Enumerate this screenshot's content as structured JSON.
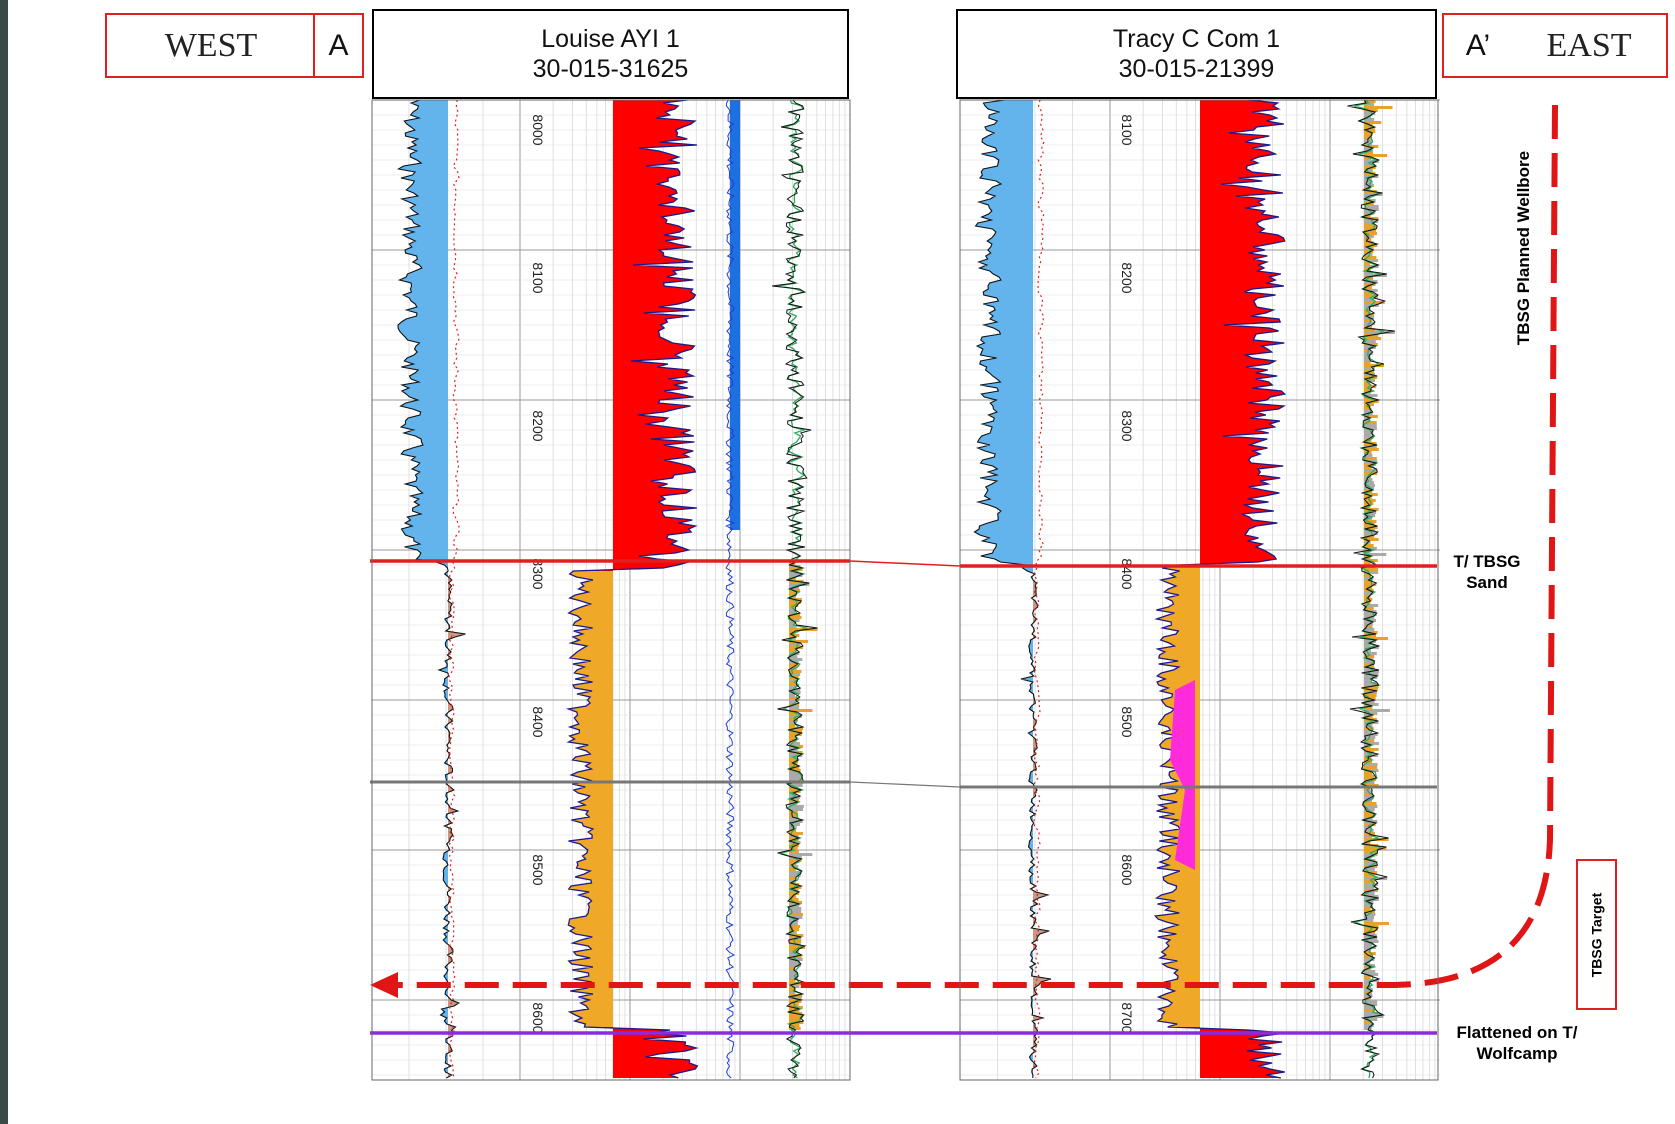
{
  "west_label": "WEST",
  "a_label": "A",
  "a_prime_label": "A’",
  "east_label": "EAST",
  "wells": [
    {
      "name": "Louise AYI 1",
      "api": "30-015-31625",
      "depths": [
        "8000",
        "8100",
        "8200",
        "8300",
        "8400",
        "8500",
        "8600"
      ]
    },
    {
      "name": "Tracy C Com 1",
      "api": "30-015-21399",
      "depths": [
        "8100",
        "8200",
        "8300",
        "8400",
        "8500",
        "8600",
        "8700"
      ]
    }
  ],
  "markers": {
    "top_tbsg": "T/ TBSG\nSand",
    "flattened": "Flattened on T/\nWolfcamp"
  },
  "planned_wellbore_label": "TBSG Planned Wellbore",
  "target_label": "TBSG Target",
  "colors": {
    "correlation_top": "#e02020",
    "correlation_mid": "#777777",
    "datum": "#8a2be2",
    "planned_path": "#e01515",
    "sp_fill": "#63b4ec",
    "sand_fill": "#f0a828",
    "resistivity_fill": "#ff0000",
    "shale_fill": "#c89a86"
  }
}
